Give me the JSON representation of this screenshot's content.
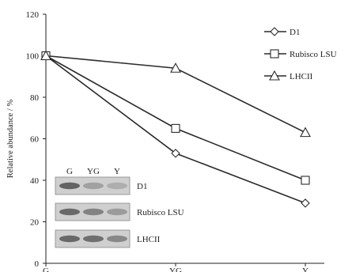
{
  "chart_data": {
    "type": "line",
    "title": "",
    "xlabel": "",
    "ylabel": "Relative abundance / %",
    "ylim": [
      0,
      120
    ],
    "yticks": [
      0,
      20,
      40,
      60,
      80,
      100,
      120
    ],
    "categories": [
      "G",
      "YG",
      "Y"
    ],
    "series": [
      {
        "name": "D1",
        "marker": "diamond",
        "values": [
          100,
          53,
          29
        ]
      },
      {
        "name": "Rubisco LSU",
        "marker": "square",
        "values": [
          100,
          65,
          40
        ]
      },
      {
        "name": "LHCII",
        "marker": "triangle",
        "values": [
          100,
          94,
          63
        ]
      }
    ],
    "legend_position": "top-right",
    "grid": false,
    "line_color": "#2a2a2a",
    "marker_fill": "#ffffff",
    "inset_blot": {
      "lanes": [
        "G",
        "YG",
        "Y"
      ],
      "rows": [
        {
          "label": "D1",
          "band_intensity": [
            0.85,
            0.35,
            0.25
          ]
        },
        {
          "label": "Rubisco LSU",
          "band_intensity": [
            0.8,
            0.6,
            0.4
          ]
        },
        {
          "label": "LHCII",
          "band_intensity": [
            0.8,
            0.75,
            0.55
          ]
        }
      ]
    }
  }
}
